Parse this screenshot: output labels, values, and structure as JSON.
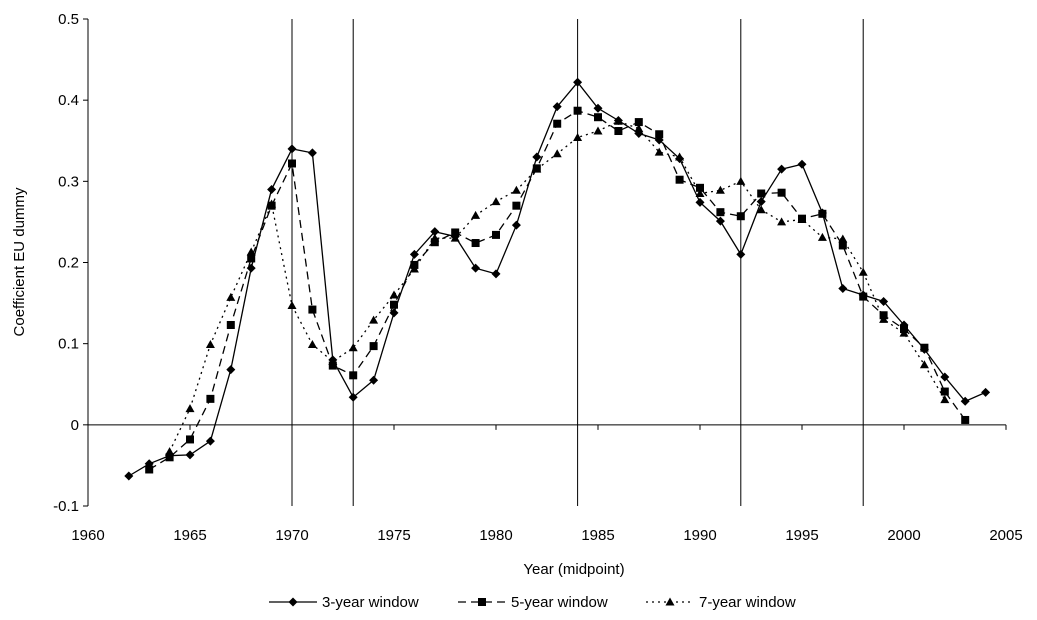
{
  "chart_data": {
    "type": "line",
    "title": "",
    "xlabel": "Year (midpoint)",
    "ylabel": "Coefficient EU dummy",
    "xlim": [
      1960,
      2005
    ],
    "ylim": [
      -0.1,
      0.5
    ],
    "x_ticks": [
      "1960",
      "1965",
      "1970",
      "1975",
      "1980",
      "1985",
      "1990",
      "1995",
      "2000",
      "2005"
    ],
    "y_ticks": [
      "-0.1",
      "0",
      "0.1",
      "0.2",
      "0.3",
      "0.4",
      "0.5"
    ],
    "grid": false,
    "legend_position": "bottom",
    "vertical_reference_lines": [
      1970,
      1973,
      1984,
      1992,
      1998
    ],
    "series": [
      {
        "name": "3-year window",
        "line_style": "solid",
        "marker": "diamond",
        "x": [
          1962,
          1963,
          1964,
          1965,
          1966,
          1967,
          1968,
          1969,
          1970,
          1971,
          1972,
          1973,
          1974,
          1975,
          1976,
          1977,
          1978,
          1979,
          1980,
          1981,
          1982,
          1983,
          1984,
          1985,
          1986,
          1987,
          1988,
          1989,
          1990,
          1991,
          1992,
          1993,
          1994,
          1995,
          1996,
          1997,
          1998,
          1999,
          2000,
          2001,
          2002,
          2003,
          2004
        ],
        "values": [
          -0.063,
          -0.048,
          -0.038,
          -0.037,
          -0.02,
          0.068,
          0.193,
          0.29,
          0.34,
          0.335,
          0.08,
          0.034,
          0.055,
          0.138,
          0.21,
          0.238,
          0.232,
          0.193,
          0.186,
          0.246,
          0.33,
          0.392,
          0.422,
          0.39,
          0.375,
          0.359,
          0.351,
          0.328,
          0.274,
          0.251,
          0.21,
          0.275,
          0.315,
          0.321,
          0.261,
          0.168,
          0.16,
          0.152,
          0.123,
          0.093,
          0.059,
          0.029,
          0.04
        ]
      },
      {
        "name": "5-year window",
        "line_style": "dashed",
        "marker": "square",
        "x": [
          1963,
          1964,
          1965,
          1966,
          1967,
          1968,
          1969,
          1970,
          1971,
          1972,
          1973,
          1974,
          1975,
          1976,
          1977,
          1978,
          1979,
          1980,
          1981,
          1982,
          1983,
          1984,
          1985,
          1986,
          1987,
          1988,
          1989,
          1990,
          1991,
          1992,
          1993,
          1994,
          1995,
          1996,
          1997,
          1998,
          1999,
          2000,
          2001,
          2002,
          2003
        ],
        "values": [
          -0.055,
          -0.04,
          -0.018,
          0.032,
          0.123,
          0.205,
          0.27,
          0.322,
          0.142,
          0.073,
          0.061,
          0.097,
          0.148,
          0.197,
          0.225,
          0.237,
          0.224,
          0.234,
          0.27,
          0.316,
          0.371,
          0.387,
          0.379,
          0.362,
          0.373,
          0.358,
          0.302,
          0.292,
          0.262,
          0.257,
          0.285,
          0.286,
          0.254,
          0.26,
          0.221,
          0.158,
          0.135,
          0.118,
          0.095,
          0.041,
          0.006
        ]
      },
      {
        "name": "7-year window",
        "line_style": "dotted",
        "marker": "triangle",
        "x": [
          1964,
          1965,
          1966,
          1967,
          1968,
          1969,
          1970,
          1971,
          1972,
          1973,
          1974,
          1975,
          1976,
          1977,
          1978,
          1979,
          1980,
          1981,
          1982,
          1983,
          1984,
          1985,
          1986,
          1987,
          1988,
          1989,
          1990,
          1991,
          1992,
          1993,
          1994,
          1995,
          1996,
          1997,
          1998,
          1999,
          2000,
          2001,
          2002
        ],
        "values": [
          -0.033,
          0.02,
          0.099,
          0.157,
          0.213,
          0.272,
          0.147,
          0.099,
          0.078,
          0.095,
          0.129,
          0.16,
          0.192,
          0.23,
          0.23,
          0.258,
          0.275,
          0.289,
          0.315,
          0.334,
          0.354,
          0.362,
          0.374,
          0.365,
          0.336,
          0.33,
          0.285,
          0.289,
          0.3,
          0.265,
          0.25,
          0.253,
          0.231,
          0.229,
          0.188,
          0.13,
          0.113,
          0.074,
          0.031
        ]
      }
    ]
  }
}
